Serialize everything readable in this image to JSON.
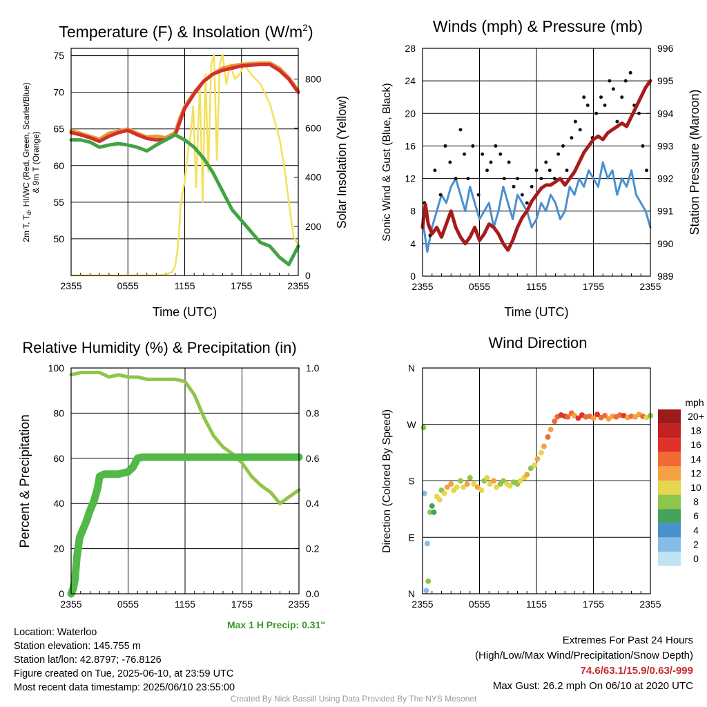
{
  "time_ticks": [
    "2355",
    "0555",
    "1155",
    "1755",
    "2355"
  ],
  "charts": [
    {
      "id": "temp",
      "type": "line",
      "title": "Temperature (F) & Insolation (W/m",
      "title_sup": "2",
      "title_close": ")",
      "xlabel": "Time (UTC)",
      "ylabel_lines": [
        "2m T, T",
        "d",
        ", HI/WC (Red, Green, Scarlet/Blue)",
        "& 9m T (Orange)"
      ],
      "ylabel_right": "Solar Insolation (Yellow)",
      "xlim": [
        0,
        24
      ],
      "ylim": [
        45,
        76
      ],
      "yticks": [
        50,
        55,
        60,
        65,
        70,
        75
      ],
      "ylim_right": [
        0,
        925
      ],
      "yticks_right": [
        0,
        200,
        400,
        600,
        800
      ],
      "series": [
        {
          "color": "#e8973a",
          "axis": "left",
          "x": [
            0,
            1,
            2,
            3,
            4,
            5,
            6,
            7,
            8,
            9,
            10,
            11,
            11.5,
            12,
            13,
            14,
            15,
            16,
            17,
            18,
            19,
            20,
            21,
            22,
            23,
            24
          ],
          "values": [
            64.8,
            64.4,
            64.0,
            63.6,
            64.4,
            64.7,
            65.0,
            64.4,
            63.9,
            64.0,
            63.8,
            64.5,
            66.5,
            68.0,
            70.0,
            71.5,
            72.5,
            73.3,
            73.6,
            73.8,
            73.9,
            74.0,
            74.0,
            73.3,
            72.0,
            70.2
          ]
        },
        {
          "color": "#d2302d",
          "axis": "left",
          "x": [
            0,
            1,
            2,
            3,
            4,
            5,
            6,
            7,
            8,
            9,
            10,
            11,
            11.5,
            12,
            13,
            14,
            15,
            16,
            17,
            18,
            19,
            20,
            21,
            22,
            23,
            24
          ],
          "values": [
            64.5,
            64.2,
            63.8,
            63.3,
            64.0,
            64.5,
            64.8,
            64.2,
            63.7,
            63.5,
            63.5,
            64.2,
            66.0,
            67.8,
            69.8,
            71.5,
            72.5,
            73.0,
            73.3,
            73.6,
            73.7,
            73.8,
            73.8,
            73.0,
            71.8,
            70.0
          ]
        },
        {
          "color": "#43a344",
          "axis": "left",
          "x": [
            0,
            1,
            2,
            3,
            4,
            5,
            6,
            7,
            8,
            9,
            10,
            11,
            12,
            13,
            14,
            15,
            16,
            17,
            18,
            19,
            20,
            21,
            22,
            23,
            24
          ],
          "values": [
            63.5,
            63.5,
            63.2,
            62.5,
            62.8,
            63.0,
            62.8,
            62.5,
            62.0,
            62.8,
            63.5,
            64.2,
            63.5,
            62.5,
            61.0,
            59.0,
            56.5,
            54.0,
            52.5,
            51.0,
            49.5,
            49.0,
            47.5,
            46.5,
            49.0
          ]
        },
        {
          "color": "#f5e05a",
          "axis": "right",
          "x": [
            0,
            9,
            10,
            10.7,
            11,
            11.3,
            11.6,
            12,
            12.4,
            12.6,
            12.9,
            13.2,
            13.6,
            13.9,
            14.2,
            14.5,
            14.8,
            15.1,
            15.4,
            15.7,
            16.0,
            16.4,
            16.8,
            17.3,
            17.8,
            18.3,
            19.0,
            20.0,
            21.0,
            22.0,
            22.5,
            23.0,
            23.5,
            24.0
          ],
          "values": [
            0,
            0,
            3,
            15,
            40,
            120,
            300,
            380,
            520,
            560,
            690,
            360,
            780,
            300,
            820,
            420,
            860,
            900,
            470,
            860,
            900,
            780,
            860,
            800,
            820,
            860,
            820,
            780,
            700,
            560,
            450,
            300,
            160,
            120
          ]
        }
      ]
    },
    {
      "id": "winds",
      "type": "line",
      "title": "Winds (mph) & Pressure (mb)",
      "xlabel": "Time (UTC)",
      "ylabel": "Sonic Wind & Gust (Blue, Black)",
      "ylabel_right": "Station Pressure (Maroon)",
      "xlim": [
        0,
        24
      ],
      "ylim": [
        0,
        28
      ],
      "yticks": [
        0,
        4,
        8,
        12,
        16,
        20,
        24,
        28
      ],
      "ylim_right": [
        989,
        996
      ],
      "yticks_right": [
        989,
        990,
        991,
        992,
        993,
        994,
        995,
        996
      ],
      "series": [
        {
          "name": "wind",
          "color": "#4a90cf",
          "axis": "left",
          "x": [
            0,
            0.5,
            1,
            1.5,
            2,
            2.5,
            3,
            3.5,
            4,
            4.5,
            5,
            5.5,
            6,
            6.5,
            7,
            7.5,
            8,
            8.5,
            9,
            9.5,
            10,
            10.5,
            11,
            11.5,
            12,
            12.5,
            13,
            13.5,
            14,
            14.5,
            15,
            15.5,
            16,
            16.5,
            17,
            17.5,
            18,
            18.5,
            19,
            19.5,
            20,
            20.5,
            21,
            21.5,
            22,
            22.5,
            23,
            23.5,
            24
          ],
          "values": [
            7,
            3,
            6,
            8,
            10,
            9,
            11,
            12,
            10,
            8,
            11,
            9,
            7,
            8,
            9,
            6,
            8,
            11,
            9,
            7,
            10,
            9,
            8,
            6,
            7,
            9,
            8,
            10,
            9,
            7,
            8,
            11,
            10,
            12,
            11,
            13,
            12,
            11,
            14,
            12,
            13,
            10,
            12,
            11,
            13,
            10,
            9,
            8,
            6
          ]
        },
        {
          "name": "gust",
          "color": "#111111",
          "axis": "left",
          "type": "scatter",
          "x": [
            0.2,
            0.8,
            1.3,
            1.9,
            2.4,
            2.9,
            3.5,
            4.0,
            4.4,
            4.8,
            5.3,
            5.9,
            6.3,
            6.8,
            7.2,
            7.7,
            8.2,
            8.6,
            9.1,
            9.6,
            10.0,
            10.5,
            11.0,
            11.5,
            12.0,
            12.5,
            13.0,
            13.4,
            13.9,
            14.3,
            14.8,
            15.2,
            15.7,
            16.1,
            16.6,
            17.0,
            17.4,
            17.9,
            18.3,
            18.8,
            19.2,
            19.7,
            20.1,
            20.5,
            21.0,
            21.4,
            21.9,
            22.3,
            22.8,
            23.2,
            23.6
          ],
          "values": [
            9,
            5,
            13,
            10,
            16,
            14,
            12,
            18,
            15,
            12,
            16,
            10,
            15,
            13,
            14,
            16,
            15,
            12,
            14,
            11,
            12,
            10,
            9,
            11,
            13,
            12,
            14,
            13,
            12,
            15,
            16,
            13,
            17,
            19,
            18,
            22,
            21,
            17,
            20,
            22,
            21,
            24,
            23,
            19,
            22,
            24,
            25,
            21,
            20,
            16,
            13
          ]
        },
        {
          "name": "pressure",
          "color": "#a61c1c",
          "axis": "right",
          "x": [
            0,
            0.3,
            0.6,
            1,
            1.5,
            2,
            2.5,
            3,
            3.5,
            4,
            4.5,
            5,
            5.5,
            6,
            6.5,
            7,
            7.5,
            8,
            8.5,
            9,
            9.5,
            10,
            10.5,
            11,
            11.5,
            12,
            12.5,
            13,
            13.5,
            14,
            14.5,
            15,
            15.5,
            16,
            16.5,
            17,
            17.5,
            18,
            18.5,
            19,
            19.5,
            20,
            20.5,
            21,
            21.5,
            22,
            22.5,
            23,
            23.5,
            24
          ],
          "values": [
            990.5,
            991.2,
            990.6,
            990.3,
            990.5,
            990.2,
            990.6,
            991.0,
            990.5,
            990.2,
            990.0,
            990.2,
            990.5,
            990.1,
            990.3,
            990.6,
            990.5,
            990.3,
            990.0,
            989.8,
            990.1,
            990.5,
            990.8,
            991.0,
            991.3,
            991.5,
            991.7,
            991.8,
            991.8,
            991.9,
            992.0,
            991.8,
            992.0,
            992.2,
            992.5,
            992.8,
            993.0,
            993.2,
            993.3,
            993.2,
            993.4,
            993.5,
            993.6,
            993.7,
            993.6,
            993.9,
            994.2,
            994.5,
            994.8,
            995.0
          ]
        }
      ]
    },
    {
      "id": "rh",
      "type": "line",
      "title": "Relative Humidity (%) & Precipitation (in)",
      "ylabel": "Percent & Precipitation",
      "xlim": [
        0,
        24
      ],
      "ylim": [
        0,
        100
      ],
      "yticks": [
        0,
        20,
        40,
        60,
        80,
        100
      ],
      "ylim_right": [
        0,
        1.0
      ],
      "yticks_right": [
        "0.0",
        "0.2",
        "0.4",
        "0.6",
        "0.8",
        "1.0"
      ],
      "series": [
        {
          "name": "rh",
          "color": "#8fc64a",
          "axis": "left",
          "x": [
            0,
            1,
            2,
            3,
            4,
            5,
            6,
            7,
            8,
            9,
            10,
            11,
            12,
            13,
            14,
            15,
            16,
            17,
            18,
            19,
            20,
            21,
            22,
            23,
            24
          ],
          "values": [
            97,
            98,
            98,
            98,
            96,
            97,
            96,
            96,
            95,
            95,
            95,
            95,
            94,
            88,
            78,
            70,
            65,
            62,
            58,
            52,
            48,
            45,
            40,
            43,
            46
          ]
        },
        {
          "name": "precip",
          "color": "#52b848",
          "axis": "right",
          "x": [
            0,
            0.2,
            0.4,
            0.6,
            0.9,
            1.2,
            1.6,
            2.0,
            2.4,
            2.8,
            3.0,
            3.5,
            4,
            5,
            6,
            6.5,
            7,
            7.5,
            24
          ],
          "values": [
            0,
            0.02,
            0.06,
            0.16,
            0.25,
            0.28,
            0.32,
            0.37,
            0.41,
            0.47,
            0.52,
            0.53,
            0.53,
            0.53,
            0.54,
            0.56,
            0.6,
            0.605,
            0.605
          ]
        }
      ]
    },
    {
      "id": "wdir",
      "type": "scatter",
      "title": "Wind Direction",
      "ylabel": "Direction (Colored By Speed)",
      "xlim": [
        0,
        24
      ],
      "yticklabels": [
        "N",
        "E",
        "S",
        "W",
        "N"
      ],
      "legend_title": "mph",
      "legend_labels": [
        "20+",
        "18",
        "16",
        "14",
        "12",
        "10",
        "8",
        "6",
        "4",
        "2",
        "0"
      ],
      "legend_colors": [
        "#9b1b1b",
        "#c42222",
        "#e0322a",
        "#f06a35",
        "#f5a043",
        "#e6d64d",
        "#8fc64a",
        "#43a35c",
        "#4a90cf",
        "#85bde6",
        "#bfe3f5"
      ],
      "x": [
        0.1,
        0.2,
        0.4,
        0.5,
        0.6,
        0.8,
        1.0,
        1.2,
        1.5,
        1.8,
        2.0,
        2.3,
        2.6,
        3.0,
        3.3,
        3.6,
        4.0,
        4.3,
        4.7,
        5.0,
        5.4,
        5.8,
        6.2,
        6.5,
        6.8,
        7.1,
        7.5,
        7.8,
        8.2,
        8.5,
        8.9,
        9.2,
        9.6,
        10.0,
        10.3,
        10.7,
        11.0,
        11.4,
        11.8,
        12.1,
        12.5,
        12.8,
        13.2,
        13.5,
        13.9,
        14.2,
        14.6,
        15.0,
        15.3,
        15.7,
        16.0,
        16.4,
        16.8,
        17.2,
        17.6,
        18.0,
        18.4,
        18.8,
        19.2,
        19.6,
        20.0,
        20.4,
        20.8,
        21.2,
        21.6,
        22.0,
        22.4,
        22.8,
        23.2,
        23.6,
        24.0
      ],
      "values": [
        265,
        160,
        5,
        80,
        20,
        130,
        140,
        130,
        155,
        150,
        165,
        160,
        170,
        175,
        165,
        170,
        180,
        170,
        175,
        185,
        175,
        170,
        165,
        180,
        185,
        175,
        180,
        170,
        175,
        180,
        175,
        172,
        178,
        175,
        180,
        185,
        190,
        200,
        205,
        215,
        225,
        235,
        250,
        262,
        275,
        282,
        285,
        283,
        282,
        288,
        284,
        280,
        285,
        282,
        283,
        280,
        286,
        281,
        284,
        279,
        283,
        282,
        285,
        284,
        281,
        283,
        282,
        286,
        283,
        281,
        284
      ],
      "speeds": [
        8,
        2,
        2,
        2,
        8,
        7,
        5,
        6,
        9,
        10,
        8,
        9,
        11,
        12,
        9,
        10,
        8,
        10,
        12,
        7,
        9,
        11,
        10,
        8,
        9,
        10,
        11,
        9,
        8,
        7,
        9,
        10,
        8,
        7,
        9,
        10,
        11,
        8,
        10,
        11,
        9,
        12,
        13,
        12,
        14,
        13,
        15,
        16,
        14,
        13,
        12,
        15,
        16,
        14,
        13,
        12,
        15,
        14,
        13,
        11,
        12,
        14,
        13,
        15,
        12,
        14,
        11,
        12,
        13,
        9,
        7
      ]
    }
  ],
  "max_precip": "Max 1 H Precip: 0.31\"",
  "info": {
    "location": "Location: Waterloo",
    "elevation": "Station elevation: 145.755 m",
    "latlon": "Station lat/lon: 42.8797; -76.8126",
    "created": "Figure created on Tue, 2025-06-10, at 23:59 UTC",
    "recent": "Most recent data timestamp: 2025/06/10 23:55:00"
  },
  "extremes": {
    "line1": "Extremes For Past 24 Hours",
    "line2": "(High/Low/Max Wind/Precipitation/Snow Depth)",
    "values": "74.6/63.1/15.9/0.63/-999",
    "gust": "Max Gust: 26.2 mph On 06/10 at 2020 UTC"
  },
  "credit": "Created By Nick Bassill Using Data Provided By The NYS Mesonet"
}
